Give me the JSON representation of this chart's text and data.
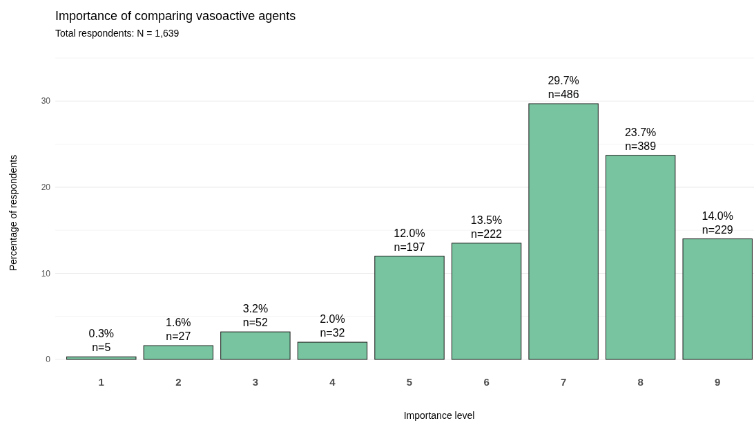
{
  "chart_data": {
    "type": "bar",
    "title": "Importance of comparing vasoactive agents",
    "subtitle": "Total respondents: N = 1,639",
    "xlabel": "Importance level",
    "ylabel": "Percentage of respondents",
    "categories": [
      "1",
      "2",
      "3",
      "4",
      "5",
      "6",
      "7",
      "8",
      "9"
    ],
    "values": [
      0.3,
      1.6,
      3.2,
      2.0,
      12.0,
      13.5,
      29.7,
      23.7,
      14.0
    ],
    "value_labels": [
      "0.3%\nn=5",
      "1.6%\nn=27",
      "3.2%\nn=52",
      "2.0%\nn=32",
      "12.0%\nn=197",
      "13.5%\nn=222",
      "29.7%\nn=486",
      "23.7%\nn=389",
      "14.0%\nn=229"
    ],
    "color": "#79c4a0",
    "ylim": [
      0,
      35
    ],
    "yticks": [
      0,
      {
        "value": 5,
        "label": null
      },
      10,
      {
        "value": 15,
        "label": null
      },
      20,
      {
        "value": 25,
        "label": null
      },
      30,
      {
        "value": 35,
        "label": null
      }
    ],
    "grid": "y"
  }
}
